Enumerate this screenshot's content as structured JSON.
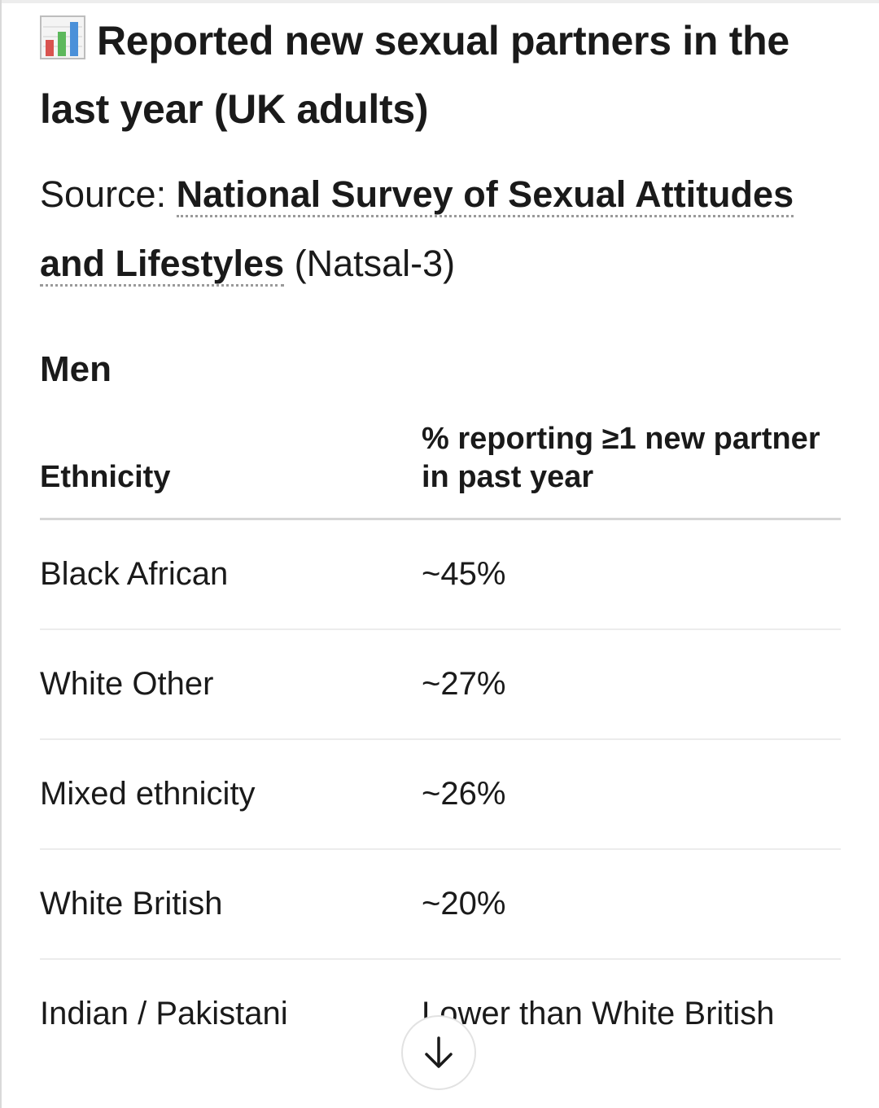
{
  "header": {
    "icon": "bar-chart-icon",
    "title": "Reported new sexual partners in the last year (UK adults)"
  },
  "source": {
    "prefix": "Source: ",
    "link_part1": "National Survey of Sexual Attitudes and Lifestyles",
    "suffix": " (Natsal-3)"
  },
  "section": {
    "heading": "Men"
  },
  "table": {
    "headers": [
      "Ethnicity",
      "% reporting ≥1 new partner in past year"
    ],
    "rows": [
      [
        "Black African",
        "~45%"
      ],
      [
        "White Other",
        "~27%"
      ],
      [
        "Mixed ethnicity",
        "~26%"
      ],
      [
        "White British",
        "~20%"
      ],
      [
        "Indian / Pakistani",
        "Lower than White British"
      ]
    ]
  },
  "scroll_button": {
    "icon": "arrow-down-icon"
  },
  "colors": {
    "text": "#1a1a1a",
    "divider": "#d6d6d6",
    "icon_bar_blue": "#4a90d9",
    "icon_bar_green": "#5cb85c",
    "icon_bar_red": "#d9534f"
  }
}
